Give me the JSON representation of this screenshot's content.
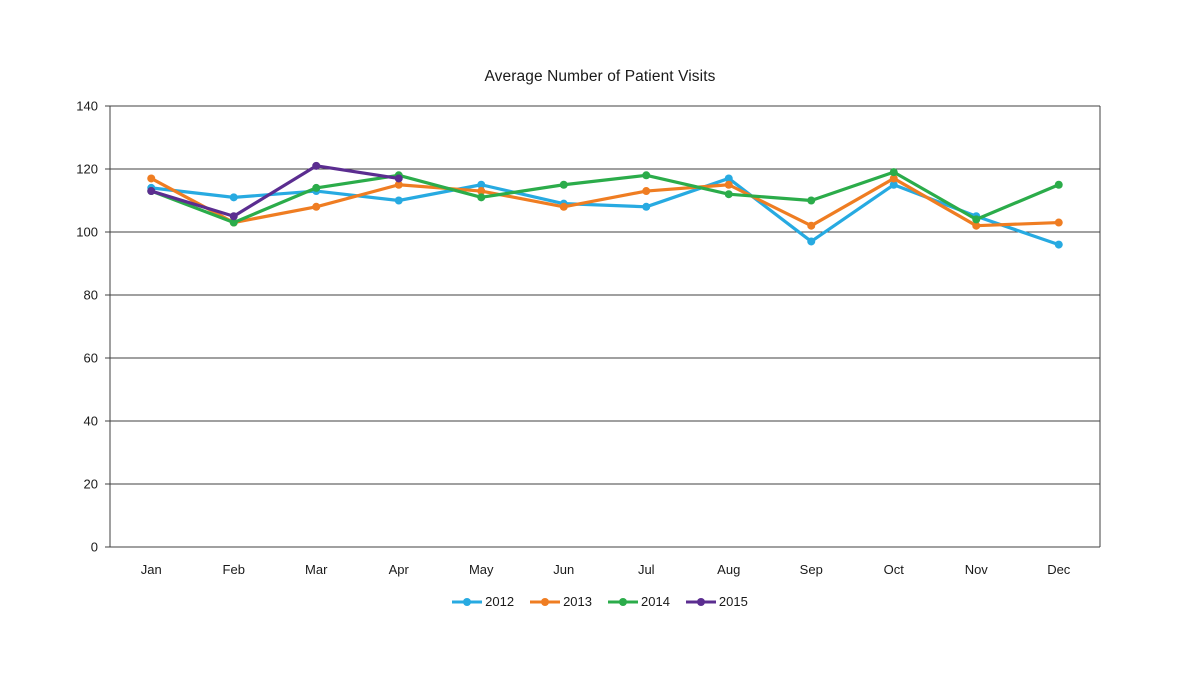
{
  "chart_data": {
    "type": "line",
    "title": "Average Number of Patient Visits",
    "xlabel": "",
    "ylabel": "",
    "categories": [
      "Jan",
      "Feb",
      "Mar",
      "Apr",
      "May",
      "Jun",
      "Jul",
      "Aug",
      "Sep",
      "Oct",
      "Nov",
      "Dec"
    ],
    "series": [
      {
        "name": "2012",
        "color": "#27AAE1",
        "values": [
          114,
          111,
          113,
          110,
          115,
          109,
          108,
          117,
          97,
          115,
          105,
          96
        ]
      },
      {
        "name": "2013",
        "color": "#EF7D22",
        "values": [
          117,
          103,
          108,
          115,
          113,
          108,
          113,
          115,
          102,
          117,
          102,
          103
        ]
      },
      {
        "name": "2014",
        "color": "#2BAC4A",
        "values": [
          113,
          103,
          114,
          118,
          111,
          115,
          118,
          112,
          110,
          119,
          104,
          115
        ]
      },
      {
        "name": "2015",
        "color": "#5B2D90",
        "values": [
          113,
          105,
          121,
          117,
          null,
          null,
          null,
          null,
          null,
          null,
          null,
          null
        ]
      }
    ],
    "ylim": [
      0,
      140
    ],
    "ytick_step": 20,
    "grid": true,
    "gridline_color": "#404040",
    "text_color": "#1a1a1a",
    "legend_position": "bottom"
  }
}
